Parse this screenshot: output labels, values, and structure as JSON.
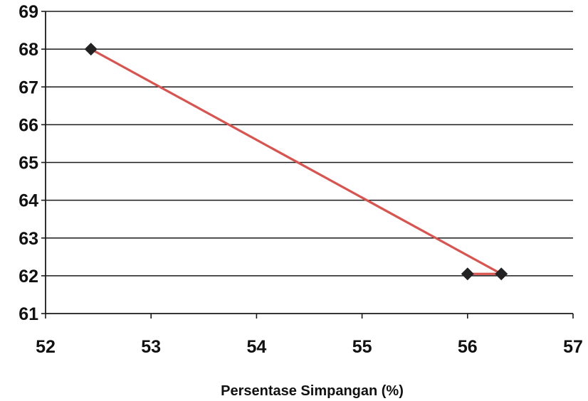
{
  "chart_data": {
    "type": "line",
    "title": "",
    "xlabel": "Persentase Simpangan (%)",
    "ylabel": "",
    "xlim": [
      52,
      57
    ],
    "ylim": [
      61,
      69
    ],
    "x_ticks": [
      52,
      53,
      54,
      55,
      56,
      57
    ],
    "y_ticks": [
      61,
      62,
      63,
      64,
      65,
      66,
      67,
      68,
      69
    ],
    "grid": "horizontal",
    "legend": "none",
    "series": [
      {
        "points": [
          {
            "x": 52.43,
            "y": 68.0
          },
          {
            "x": 56.32,
            "y": 62.05
          },
          {
            "x": 56.0,
            "y": 62.05
          }
        ],
        "line_color": "#d9534f",
        "marker": "diamond",
        "marker_color": "#222222"
      }
    ]
  }
}
